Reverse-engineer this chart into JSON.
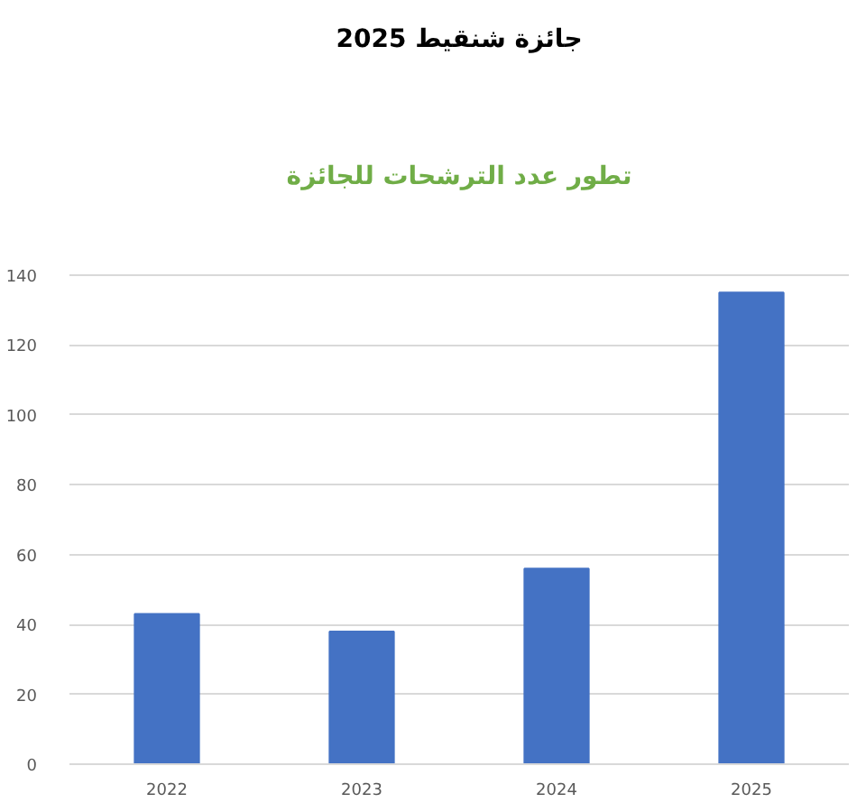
{
  "chart_data": {
    "type": "bar",
    "title": "جائزة شنقيط 2025",
    "subtitle": "تطور عدد الترشحات للجائزة",
    "categories": [
      "2022",
      "2023",
      "2024",
      "2025"
    ],
    "values": [
      43,
      38,
      56,
      135
    ],
    "color": "#4472c4",
    "ylim": [
      0,
      140
    ],
    "yticks": [
      0,
      20,
      40,
      60,
      80,
      100,
      120,
      140
    ],
    "grid": "y"
  }
}
